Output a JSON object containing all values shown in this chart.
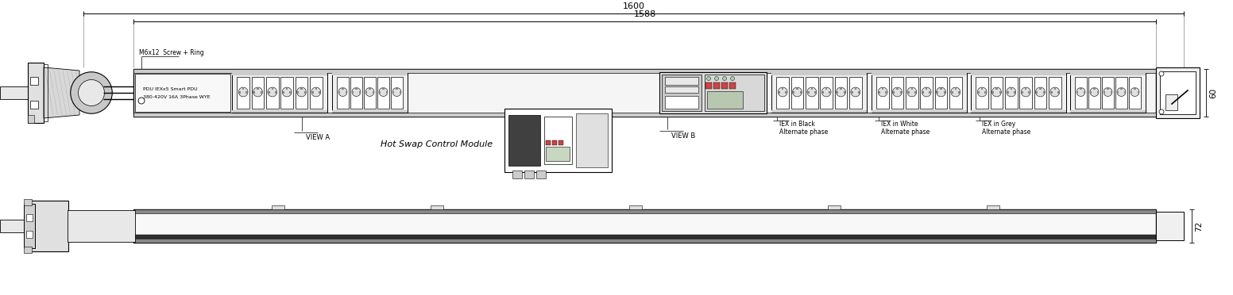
{
  "bg_color": "#ffffff",
  "lc": "#000000",
  "fill_light": "#eeeeee",
  "fill_mid": "#cccccc",
  "fill_dark": "#999999",
  "fill_vdark": "#555555",
  "dim_1600": "1600",
  "dim_1588": "1588",
  "dim_60": "60",
  "dim_72": "72",
  "label_view_a": "VIEW A",
  "label_view_b": "VIEW B",
  "label_hot_swap": "Hot Swap Control Module",
  "label_m6x12": "M6x12  Screw + Ring",
  "label_iex_black": "IEX in Black\nAlternate phase",
  "label_iex_white": "IEX in White\nAlternate phase",
  "label_iex_grey": "IEX in Grey\nAlternate phase",
  "label_info1": "PDU IEXx5 Smart PDU",
  "label_info2": "380-420V 16A 3Phase WYE"
}
